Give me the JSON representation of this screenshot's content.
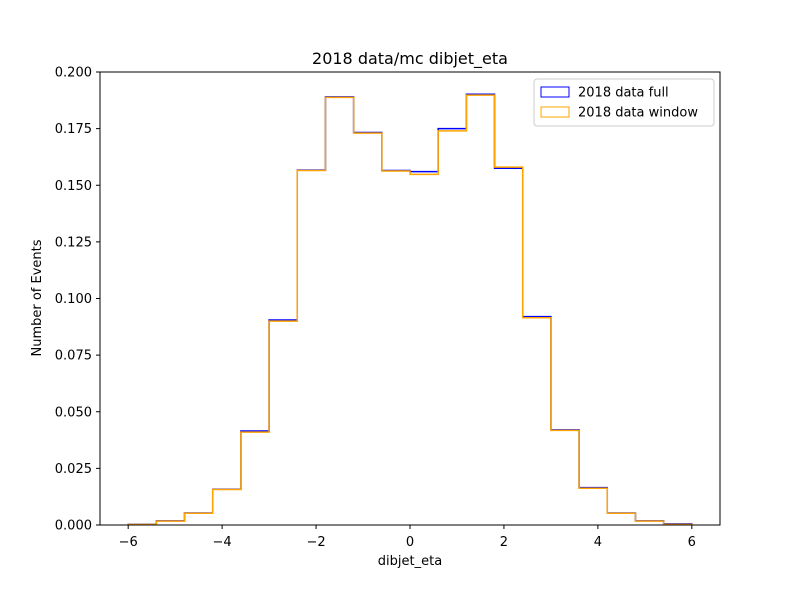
{
  "chart_data": {
    "type": "line",
    "drawstyle": "steps",
    "title": "2018 data/mc dibjet_eta",
    "xlabel": "dibjet_eta",
    "ylabel": "Number of Events",
    "xlim": [
      -6.6,
      6.6
    ],
    "ylim": [
      0,
      0.2
    ],
    "xticks": [
      -6,
      -4,
      -2,
      0,
      2,
      4,
      6
    ],
    "xtick_labels": [
      "−6",
      "−4",
      "−2",
      "0",
      "2",
      "4",
      "6"
    ],
    "yticks": [
      0,
      0.025,
      0.05,
      0.075,
      0.1,
      0.125,
      0.15,
      0.175,
      0.2
    ],
    "ytick_labels": [
      "0.000",
      "0.025",
      "0.050",
      "0.075",
      "0.100",
      "0.125",
      "0.150",
      "0.175",
      "0.200"
    ],
    "bin_edges": [
      -6.0,
      -5.4,
      -4.8,
      -4.2,
      -3.6,
      -3.0,
      -2.4,
      -1.8,
      -1.2,
      -0.6,
      0.0,
      0.6,
      1.2,
      1.8,
      2.4,
      3.0,
      3.6,
      4.2,
      4.8,
      5.4,
      6.0
    ],
    "grid": false,
    "legend_position": "top-right",
    "series": [
      {
        "name": "2018 data full",
        "color": "#0000ff",
        "values": [
          0.0003,
          0.0018,
          0.0053,
          0.0158,
          0.0415,
          0.0905,
          0.1567,
          0.189,
          0.1733,
          0.1565,
          0.156,
          0.175,
          0.1902,
          0.1575,
          0.092,
          0.042,
          0.0165,
          0.0053,
          0.0018,
          0.0005
        ]
      },
      {
        "name": "2018 data window",
        "color": "#ffa500",
        "values": [
          0.0002,
          0.0017,
          0.0052,
          0.0157,
          0.041,
          0.09,
          0.1565,
          0.1888,
          0.173,
          0.1563,
          0.1548,
          0.174,
          0.1898,
          0.158,
          0.0915,
          0.0418,
          0.0162,
          0.0052,
          0.0017,
          0.0003
        ]
      }
    ]
  }
}
